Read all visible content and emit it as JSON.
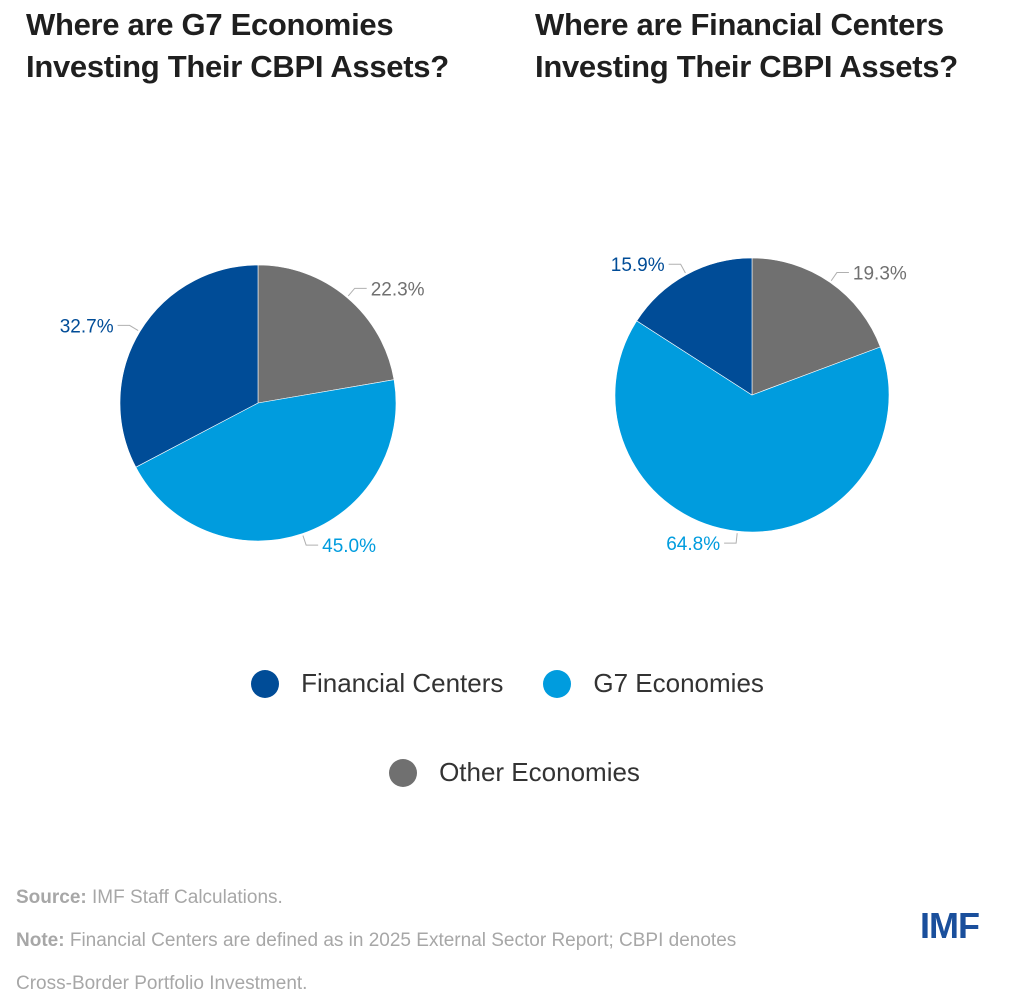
{
  "colors": {
    "financial_centers": "#004c97",
    "g7_economies": "#009cde",
    "other_economies": "#707070",
    "leader_line": "#b0b0b0"
  },
  "chart_data": [
    {
      "type": "pie",
      "title": "Where are G7 Economies Investing Their CBPI Assets?",
      "title_lines": [
        "Where are G7 Economies",
        "Investing Their CBPI Assets?"
      ],
      "slices": [
        {
          "name": "Other Economies",
          "value": 22.3,
          "label": "22.3%",
          "color_key": "other_economies"
        },
        {
          "name": "G7 Economies",
          "value": 45.0,
          "label": "45.0%",
          "color_key": "g7_economies"
        },
        {
          "name": "Financial Centers",
          "value": 32.7,
          "label": "32.7%",
          "color_key": "financial_centers"
        }
      ],
      "start_angle": "12 o'clock",
      "direction": "clockwise"
    },
    {
      "type": "pie",
      "title": "Where are Financial Centers Investing Their CBPI Assets?",
      "title_lines": [
        "Where are Financial Centers",
        "Investing Their CBPI Assets?"
      ],
      "slices": [
        {
          "name": "Other Economies",
          "value": 19.3,
          "label": "19.3%",
          "color_key": "other_economies"
        },
        {
          "name": "G7 Economies",
          "value": 64.8,
          "label": "64.8%",
          "color_key": "g7_economies"
        },
        {
          "name": "Financial Centers",
          "value": 15.9,
          "label": "15.9%",
          "color_key": "financial_centers"
        }
      ],
      "start_angle": "12 o'clock",
      "direction": "clockwise"
    }
  ],
  "legend": {
    "placement": "bottom-center",
    "items": [
      {
        "label": "Financial Centers",
        "color_key": "financial_centers"
      },
      {
        "label": "G7 Economies",
        "color_key": "g7_economies"
      },
      {
        "label": "Other Economies",
        "color_key": "other_economies"
      }
    ]
  },
  "footer": {
    "source_label": "Source:",
    "source_text": " IMF Staff Calculations.",
    "note_label": "Note:",
    "note_text_line1": " Financial Centers are defined as in 2025 External Sector Report; CBPI denotes",
    "note_text_line2": "Cross-Border Portfolio Investment."
  },
  "logo": {
    "text": "IMF"
  }
}
